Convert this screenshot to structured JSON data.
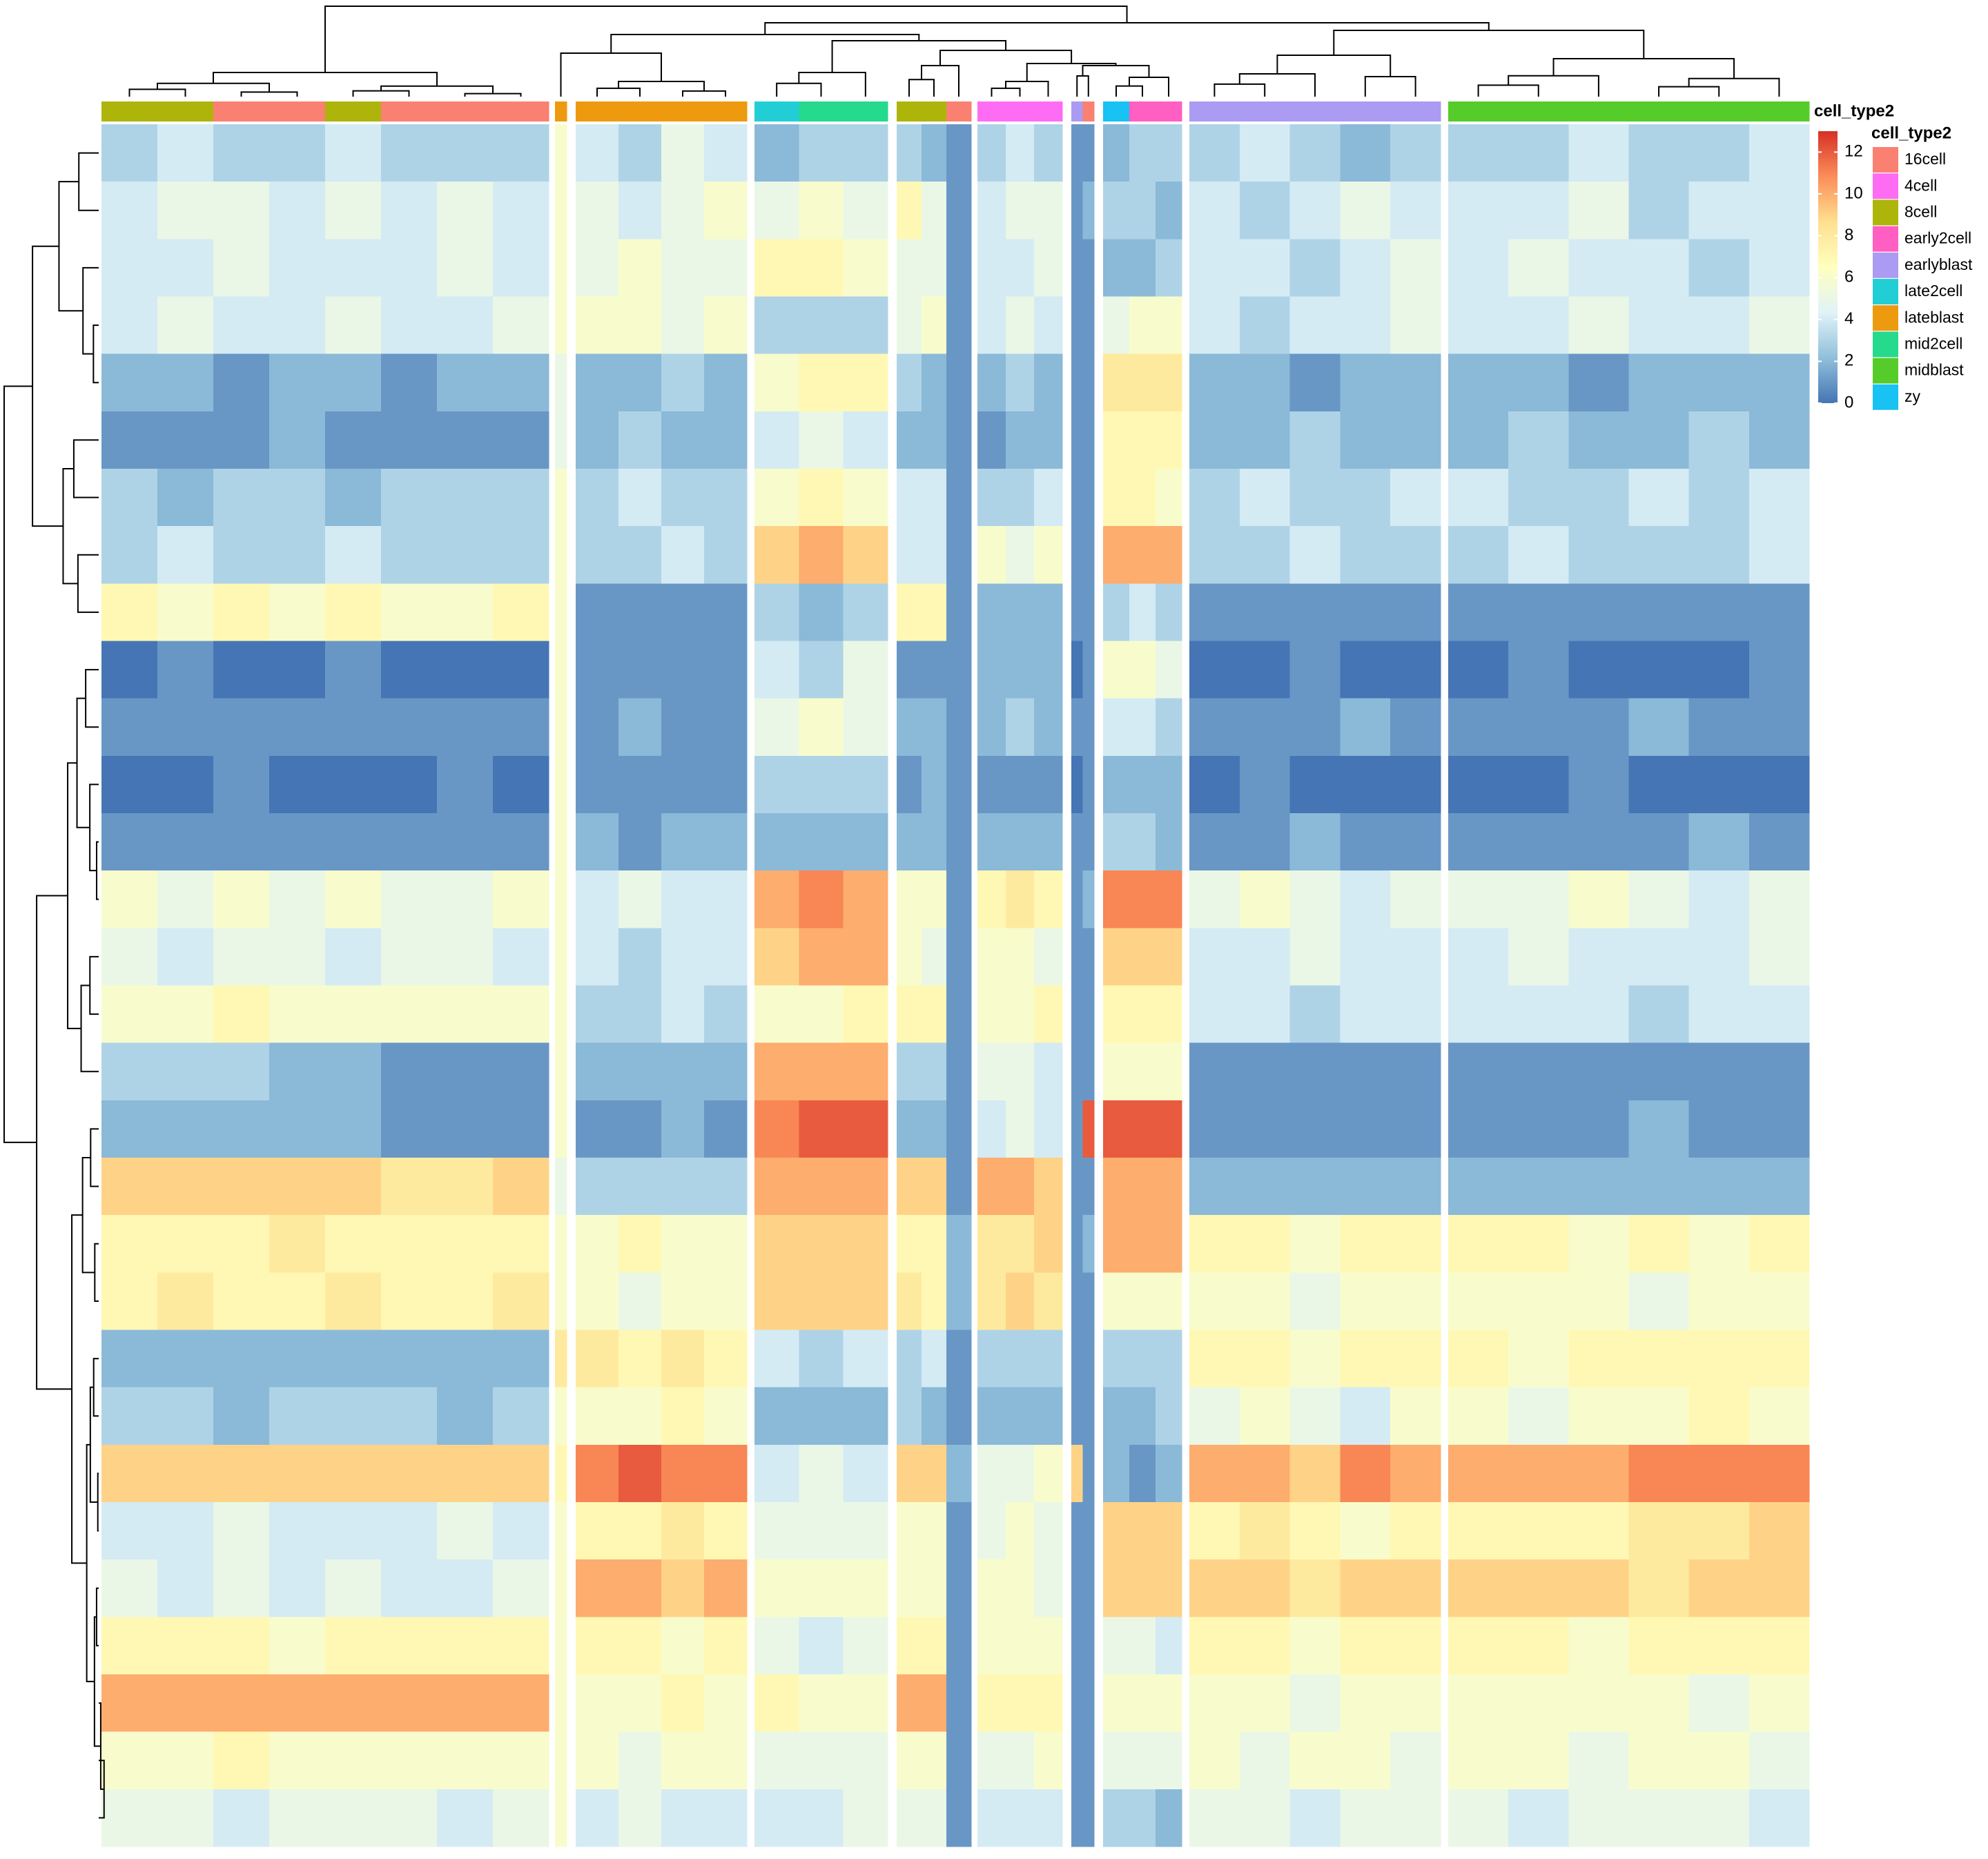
{
  "chart_data": {
    "type": "heatmap",
    "annotation_name": "cell_type2",
    "levels": [
      {
        "name": "16cell",
        "color": "#FA8072"
      },
      {
        "name": "4cell",
        "color": "#FF6CF4"
      },
      {
        "name": "8cell",
        "color": "#ADB50A"
      },
      {
        "name": "early2cell",
        "color": "#FF5EC2"
      },
      {
        "name": "earlyblast",
        "color": "#AB9BF2"
      },
      {
        "name": "late2cell",
        "color": "#22CED6"
      },
      {
        "name": "lateblast",
        "color": "#EE9A0E"
      },
      {
        "name": "mid2cell",
        "color": "#25D98D"
      },
      {
        "name": "midblast",
        "color": "#55CC2A"
      },
      {
        "name": "zy",
        "color": "#18C2F2"
      }
    ],
    "column_groups": [
      [
        "8cell",
        "8cell",
        "16cell",
        "16cell",
        "8cell",
        "16cell",
        "16cell",
        "16cell"
      ],
      [
        "lateblast"
      ],
      [
        "lateblast",
        "lateblast",
        "lateblast",
        "lateblast"
      ],
      [
        "late2cell",
        "mid2cell",
        "mid2cell"
      ],
      [
        "8cell",
        "8cell",
        "16cell"
      ],
      [
        "4cell",
        "4cell",
        "4cell"
      ],
      [
        "earlyblast",
        "16cell"
      ],
      [
        "zy",
        "early2cell",
        "early2cell"
      ],
      [
        "earlyblast",
        "earlyblast",
        "earlyblast",
        "earlyblast",
        "earlyblast"
      ],
      [
        "midblast",
        "midblast",
        "midblast",
        "midblast",
        "midblast",
        "midblast"
      ]
    ],
    "values": [
      [
        3,
        4,
        3,
        3,
        4,
        3,
        3,
        3,
        6,
        4,
        3,
        5,
        4,
        2,
        3,
        3,
        3,
        2,
        1,
        3,
        4,
        3,
        1,
        1,
        2,
        3,
        3,
        3,
        4,
        3,
        2,
        3,
        3,
        3,
        4,
        3,
        3,
        4
      ],
      [
        4,
        5,
        5,
        4,
        5,
        4,
        5,
        4,
        6,
        5,
        4,
        5,
        6,
        5,
        6,
        5,
        7,
        5,
        1,
        4,
        5,
        5,
        1,
        2,
        3,
        3,
        2,
        4,
        3,
        4,
        5,
        4,
        4,
        4,
        5,
        3,
        4,
        4
      ],
      [
        4,
        4,
        5,
        4,
        4,
        4,
        5,
        4,
        6,
        5,
        6,
        5,
        5,
        7,
        7,
        6,
        5,
        5,
        1,
        4,
        4,
        5,
        1,
        1,
        2,
        2,
        3,
        4,
        4,
        3,
        4,
        5,
        4,
        5,
        4,
        4,
        3,
        4
      ],
      [
        4,
        5,
        4,
        4,
        5,
        4,
        4,
        5,
        6,
        6,
        6,
        5,
        6,
        3,
        3,
        3,
        5,
        6,
        1,
        4,
        5,
        4,
        1,
        1,
        5,
        6,
        6,
        4,
        3,
        4,
        4,
        5,
        4,
        4,
        5,
        4,
        4,
        5
      ],
      [
        2,
        2,
        1,
        2,
        2,
        1,
        2,
        2,
        5,
        2,
        2,
        3,
        2,
        6,
        7,
        7,
        3,
        2,
        1,
        2,
        3,
        2,
        1,
        1,
        8,
        8,
        8,
        2,
        2,
        1,
        2,
        2,
        2,
        2,
        1,
        2,
        2,
        2
      ],
      [
        1,
        1,
        1,
        2,
        1,
        1,
        1,
        1,
        5,
        2,
        3,
        2,
        2,
        4,
        5,
        4,
        2,
        2,
        1,
        1,
        2,
        2,
        1,
        1,
        7,
        7,
        7,
        2,
        2,
        3,
        2,
        2,
        2,
        3,
        2,
        2,
        3,
        2
      ],
      [
        3,
        2,
        3,
        3,
        2,
        3,
        3,
        3,
        6,
        3,
        4,
        3,
        3,
        6,
        7,
        6,
        4,
        4,
        1,
        3,
        3,
        4,
        1,
        1,
        7,
        7,
        6,
        3,
        4,
        3,
        3,
        4,
        4,
        3,
        3,
        4,
        3,
        4
      ],
      [
        3,
        4,
        3,
        3,
        4,
        3,
        3,
        3,
        6,
        3,
        3,
        4,
        3,
        9,
        10,
        9,
        4,
        4,
        1,
        6,
        5,
        6,
        1,
        1,
        10,
        10,
        10,
        3,
        3,
        4,
        3,
        3,
        3,
        4,
        3,
        3,
        3,
        4
      ],
      [
        7,
        6,
        7,
        6,
        7,
        6,
        6,
        7,
        6,
        1,
        1,
        1,
        1,
        3,
        2,
        3,
        7,
        7,
        1,
        2,
        2,
        2,
        1,
        1,
        3,
        4,
        3,
        1,
        1,
        1,
        1,
        1,
        1,
        1,
        1,
        1,
        1,
        1
      ],
      [
        0,
        1,
        0,
        0,
        1,
        0,
        0,
        0,
        6,
        1,
        1,
        1,
        1,
        4,
        3,
        5,
        1,
        1,
        1,
        2,
        2,
        2,
        0,
        1,
        6,
        6,
        5,
        0,
        0,
        1,
        0,
        0,
        0,
        1,
        0,
        0,
        0,
        1
      ],
      [
        1,
        1,
        1,
        1,
        1,
        1,
        1,
        1,
        6,
        1,
        2,
        1,
        1,
        5,
        6,
        5,
        2,
        2,
        1,
        2,
        3,
        2,
        1,
        1,
        4,
        4,
        3,
        1,
        1,
        1,
        2,
        1,
        1,
        1,
        1,
        2,
        1,
        1
      ],
      [
        0,
        0,
        1,
        0,
        0,
        0,
        1,
        0,
        6,
        1,
        1,
        1,
        1,
        3,
        3,
        3,
        1,
        2,
        1,
        1,
        1,
        1,
        0,
        1,
        2,
        2,
        2,
        0,
        1,
        0,
        0,
        0,
        0,
        0,
        1,
        0,
        0,
        0
      ],
      [
        1,
        1,
        1,
        1,
        1,
        1,
        1,
        1,
        6,
        2,
        1,
        2,
        2,
        2,
        2,
        2,
        2,
        2,
        1,
        2,
        2,
        2,
        1,
        1,
        3,
        3,
        2,
        1,
        1,
        2,
        1,
        1,
        1,
        1,
        1,
        1,
        2,
        1
      ],
      [
        6,
        5,
        6,
        5,
        6,
        5,
        5,
        6,
        6,
        4,
        5,
        4,
        4,
        10,
        11,
        10,
        6,
        6,
        1,
        7,
        8,
        7,
        1,
        2,
        11,
        11,
        11,
        5,
        6,
        5,
        4,
        5,
        5,
        5,
        6,
        5,
        4,
        5
      ],
      [
        5,
        4,
        5,
        5,
        4,
        5,
        5,
        4,
        6,
        4,
        3,
        4,
        4,
        9,
        10,
        10,
        6,
        5,
        1,
        6,
        6,
        5,
        1,
        1,
        9,
        9,
        9,
        4,
        4,
        5,
        4,
        4,
        4,
        5,
        4,
        4,
        4,
        5
      ],
      [
        6,
        6,
        7,
        6,
        6,
        6,
        6,
        6,
        6,
        3,
        3,
        4,
        3,
        6,
        6,
        7,
        7,
        7,
        1,
        6,
        6,
        7,
        1,
        1,
        7,
        7,
        7,
        4,
        4,
        3,
        4,
        4,
        4,
        4,
        4,
        3,
        4,
        4
      ],
      [
        3,
        3,
        3,
        2,
        2,
        1,
        1,
        1,
        6,
        2,
        2,
        2,
        2,
        10,
        10,
        10,
        3,
        3,
        1,
        5,
        5,
        4,
        1,
        1,
        6,
        6,
        6,
        1,
        1,
        1,
        1,
        1,
        1,
        1,
        1,
        1,
        1,
        1
      ],
      [
        2,
        2,
        2,
        2,
        2,
        1,
        1,
        1,
        6,
        1,
        1,
        2,
        1,
        11,
        12,
        12,
        2,
        2,
        1,
        4,
        5,
        4,
        1,
        12,
        12,
        12,
        12,
        1,
        1,
        1,
        1,
        1,
        1,
        1,
        1,
        2,
        1,
        1
      ],
      [
        9,
        9,
        9,
        9,
        9,
        8,
        8,
        9,
        5,
        3,
        3,
        3,
        3,
        10,
        10,
        10,
        9,
        9,
        1,
        10,
        10,
        9,
        1,
        1,
        10,
        10,
        10,
        2,
        2,
        2,
        2,
        2,
        2,
        2,
        2,
        2,
        2,
        2
      ],
      [
        7,
        7,
        7,
        8,
        7,
        7,
        7,
        7,
        6,
        6,
        7,
        6,
        6,
        9,
        9,
        9,
        7,
        7,
        2,
        8,
        8,
        9,
        1,
        2,
        10,
        10,
        10,
        7,
        7,
        6,
        7,
        7,
        7,
        7,
        6,
        7,
        6,
        7
      ],
      [
        7,
        8,
        7,
        7,
        8,
        7,
        7,
        8,
        6,
        6,
        5,
        6,
        6,
        9,
        9,
        9,
        8,
        7,
        2,
        8,
        9,
        8,
        1,
        1,
        6,
        6,
        6,
        6,
        6,
        5,
        6,
        6,
        6,
        6,
        6,
        5,
        6,
        6
      ],
      [
        2,
        2,
        2,
        2,
        2,
        2,
        2,
        2,
        8,
        8,
        7,
        8,
        7,
        4,
        3,
        4,
        3,
        4,
        1,
        3,
        3,
        3,
        1,
        1,
        3,
        3,
        3,
        7,
        7,
        6,
        7,
        7,
        7,
        6,
        7,
        7,
        7,
        7
      ],
      [
        3,
        3,
        2,
        3,
        3,
        3,
        2,
        3,
        6,
        6,
        6,
        7,
        6,
        2,
        2,
        2,
        3,
        2,
        1,
        2,
        2,
        2,
        1,
        1,
        2,
        2,
        3,
        5,
        6,
        5,
        4,
        6,
        6,
        5,
        6,
        6,
        7,
        6
      ],
      [
        9,
        9,
        9,
        9,
        9,
        9,
        9,
        9,
        7,
        11,
        12,
        11,
        11,
        4,
        5,
        4,
        9,
        9,
        2,
        5,
        5,
        6,
        9,
        1,
        2,
        1,
        2,
        10,
        10,
        9,
        11,
        10,
        10,
        10,
        10,
        11,
        11,
        11
      ],
      [
        4,
        4,
        5,
        4,
        4,
        4,
        5,
        4,
        6,
        7,
        7,
        8,
        7,
        5,
        5,
        5,
        6,
        6,
        1,
        5,
        6,
        5,
        1,
        1,
        9,
        9,
        9,
        7,
        8,
        7,
        6,
        7,
        7,
        7,
        7,
        8,
        8,
        9
      ],
      [
        5,
        4,
        5,
        4,
        5,
        4,
        4,
        5,
        6,
        10,
        10,
        9,
        10,
        6,
        6,
        6,
        6,
        6,
        1,
        6,
        6,
        5,
        1,
        1,
        9,
        9,
        9,
        9,
        9,
        8,
        9,
        9,
        9,
        9,
        9,
        8,
        9,
        9
      ],
      [
        7,
        7,
        7,
        6,
        7,
        7,
        7,
        7,
        6,
        7,
        7,
        6,
        7,
        5,
        4,
        5,
        7,
        7,
        1,
        6,
        6,
        6,
        1,
        1,
        5,
        5,
        4,
        7,
        7,
        6,
        7,
        7,
        7,
        7,
        6,
        7,
        7,
        7
      ],
      [
        10,
        10,
        10,
        10,
        10,
        10,
        10,
        10,
        6,
        6,
        6,
        7,
        6,
        7,
        6,
        6,
        10,
        10,
        1,
        7,
        7,
        7,
        1,
        1,
        6,
        6,
        6,
        6,
        6,
        5,
        6,
        6,
        6,
        6,
        6,
        6,
        5,
        6
      ],
      [
        6,
        6,
        7,
        6,
        6,
        6,
        6,
        6,
        6,
        6,
        5,
        6,
        6,
        5,
        5,
        5,
        6,
        6,
        1,
        5,
        5,
        6,
        1,
        1,
        5,
        5,
        5,
        6,
        5,
        6,
        6,
        5,
        6,
        6,
        5,
        6,
        6,
        5
      ],
      [
        5,
        5,
        4,
        5,
        5,
        5,
        4,
        5,
        6,
        4,
        5,
        4,
        4,
        4,
        4,
        5,
        5,
        5,
        1,
        4,
        4,
        4,
        1,
        1,
        3,
        3,
        2,
        5,
        5,
        4,
        5,
        5,
        5,
        4,
        5,
        5,
        5,
        4
      ]
    ],
    "zlim": [
      0,
      13
    ],
    "zticks": [
      0,
      2,
      4,
      6,
      8,
      10,
      12
    ],
    "colors": [
      "#4575B4",
      "#91BFDB",
      "#E0F3F8",
      "#FFFFBF",
      "#FEE090",
      "#FC8D59",
      "#D73027"
    ]
  }
}
